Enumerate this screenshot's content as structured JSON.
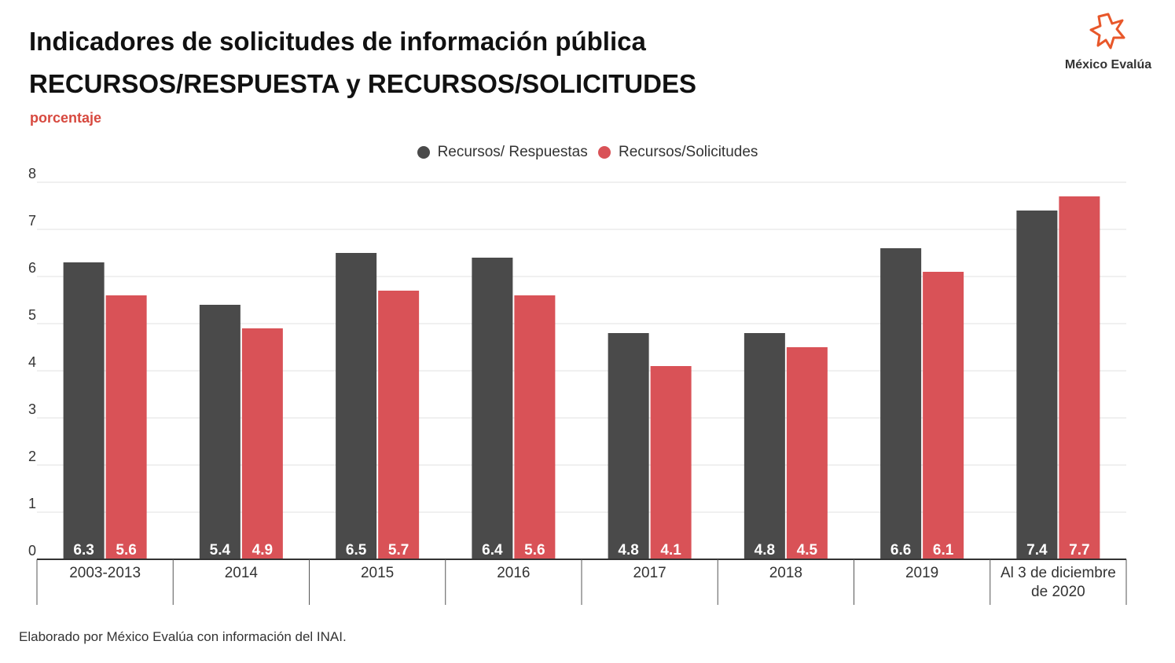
{
  "header": {
    "title_line1": "Indicadores de solicitudes de información pública",
    "title_line2": "RECURSOS/RESPUESTA  y  RECURSOS/SOLICITUDES",
    "subtitle": "porcentaje"
  },
  "logo": {
    "icon": "star-burst-icon",
    "text": "México Evalúa",
    "color": "#e8572a"
  },
  "footer": {
    "source": "Elaborado por México Evalúa con información del INAI."
  },
  "colors": {
    "series1": "#4a4a4a",
    "series2": "#d95257",
    "grid": "#e0e0e0",
    "axis": "#333333"
  },
  "chart_data": {
    "type": "bar",
    "categories": [
      "2003-2013",
      "2014",
      "2015",
      "2016",
      "2017",
      "2018",
      "2019",
      "Al 3 de diciembre de 2020"
    ],
    "category_lines": [
      [
        "2003-2013"
      ],
      [
        "2014"
      ],
      [
        "2015"
      ],
      [
        "2016"
      ],
      [
        "2017"
      ],
      [
        "2018"
      ],
      [
        "2019"
      ],
      [
        "Al 3 de diciembre",
        "de 2020"
      ]
    ],
    "series": [
      {
        "name": "Recursos/ Respuestas",
        "values": [
          6.3,
          5.4,
          6.5,
          6.4,
          4.8,
          4.8,
          6.6,
          7.4
        ]
      },
      {
        "name": "Recursos/Solicitudes",
        "values": [
          5.6,
          4.9,
          5.7,
          5.6,
          4.1,
          4.5,
          6.1,
          7.7
        ]
      }
    ],
    "ylim": [
      0,
      8
    ],
    "yticks": [
      0,
      1,
      2,
      3,
      4,
      5,
      6,
      7,
      8
    ],
    "grid": true,
    "legend_position": "top-center",
    "data_labels": "inside-bottom"
  }
}
